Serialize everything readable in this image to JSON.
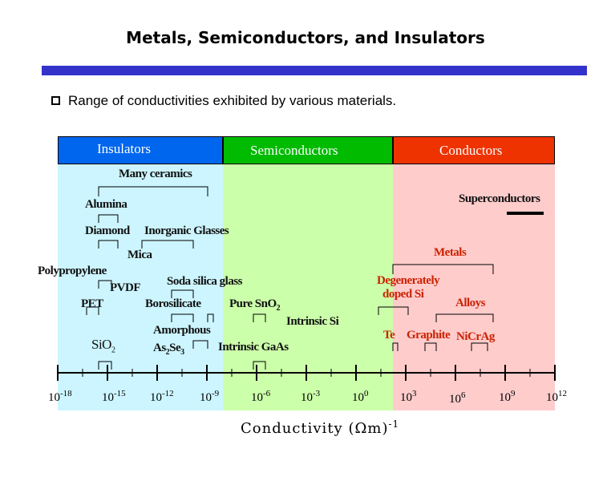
{
  "title": "Metals, Semiconductors, and Insulators",
  "bullet": "Range of conductivities exhibited by various materials.",
  "headers": {
    "insulators": "Insulators",
    "semiconductors": "Semiconductors",
    "conductors": "Conductors"
  },
  "colors": {
    "title_bar": "#3333cc",
    "insulators_header": "#0066ee",
    "semiconductors_header": "#00bb00",
    "conductors_header": "#ee3300",
    "insulators_band": "#ccf5ff",
    "semiconductors_band": "#ccffaa",
    "conductors_band": "#ffcccc"
  },
  "materials": {
    "many_ceramics": "Many ceramics",
    "superconductors": "Superconductors",
    "alumina": "Alumina",
    "diamond": "Diamond",
    "inorganic_glasses": "Inorganic Glasses",
    "mica": "Mica",
    "metals": "Metals",
    "polypropylene": "Polypropylene",
    "soda_silica_glass": "Soda silica glass",
    "pvdf": "PVDF",
    "degenerately_doped_si_1": "Degenerately",
    "degenerately_doped_si_2": "doped Si",
    "pet": "PET",
    "borosilicate": "Borosilicate",
    "pure_sno2": "Pure SnO",
    "pure_sno2_sub": "2",
    "alloys": "Alloys",
    "intrinsic_si": "Intrinsic Si",
    "amorphous": "Amorphous",
    "as2se3_a": "As",
    "as2se3_sub1": "2",
    "as2se3_b": "Se",
    "as2se3_sub2": "3",
    "sio2": "SiO",
    "sio2_sub": "2",
    "te": "Te",
    "graphite": "Graphite",
    "nicrag": "NiCrAg",
    "intrinsic_gaas": "Intrinsic GaAs"
  },
  "axis": {
    "label": "Conductivity (Ωm)",
    "label_exp": "-1",
    "ticks": [
      {
        "base": "10",
        "exp": "-18"
      },
      {
        "base": "10",
        "exp": "-15"
      },
      {
        "base": "10",
        "exp": "-12"
      },
      {
        "base": "10",
        "exp": "-9"
      },
      {
        "base": "10",
        "exp": "-6"
      },
      {
        "base": "10",
        "exp": "-3"
      },
      {
        "base": "10",
        "exp": "0"
      },
      {
        "base": "10",
        "exp": "3"
      },
      {
        "base": "10",
        "exp": "6"
      },
      {
        "base": "10",
        "exp": "9"
      },
      {
        "base": "10",
        "exp": "12"
      }
    ]
  }
}
